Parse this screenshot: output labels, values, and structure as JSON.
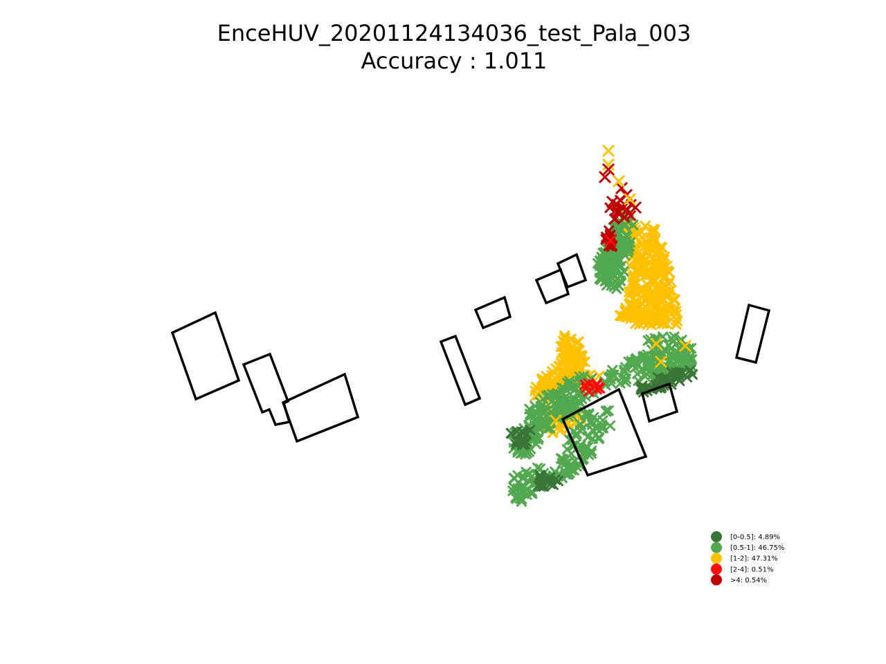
{
  "chart_data": {
    "type": "scatter",
    "title": "EnceHUV_20201124134036_test_Pala_003",
    "subtitle": "Accuracy : 1.011",
    "grid": false,
    "axes_visible": false,
    "legend_placement": "bottom-right",
    "marker": "x",
    "categories": [
      {
        "key": "0-0.5",
        "label": "[0-0.5]: 4.89%",
        "percent": 4.89,
        "color": "#3a7538"
      },
      {
        "key": "0.5-1",
        "label": "[0.5-1]: 46.75%",
        "percent": 46.75,
        "color": "#52a84f"
      },
      {
        "key": "1-2",
        "label": "[1-2]: 47.31%",
        "percent": 47.31,
        "color": "#ffc000"
      },
      {
        "key": "2-4",
        "label": "[2-4]: 0.51%",
        "percent": 0.51,
        "color": "#ff0d0d"
      },
      {
        "key": "gt4",
        "label": ">4: 0.54%",
        "percent": 0.54,
        "color": "#c00000"
      }
    ]
  }
}
